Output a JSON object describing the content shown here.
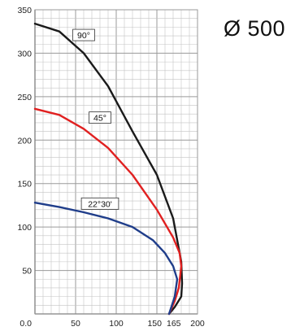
{
  "diameter_label": "Ø 500",
  "chart_data": {
    "type": "line",
    "title": "",
    "xlabel": "",
    "ylabel": "",
    "xlim": [
      0,
      200
    ],
    "ylim": [
      0,
      350
    ],
    "grid": true,
    "x_ticks": [
      "0.0",
      "50",
      "100",
      "150",
      "165",
      "200"
    ],
    "x_tick_values": [
      0,
      50,
      100,
      150,
      165,
      200
    ],
    "y_ticks": [
      50,
      100,
      150,
      200,
      250,
      300,
      350
    ],
    "series": [
      {
        "name": "90°",
        "color": "#1a1a1a",
        "x": [
          0,
          30,
          60,
          90,
          120,
          150,
          170,
          180,
          181,
          180,
          172,
          165
        ],
        "y": [
          334,
          325,
          300,
          262,
          210,
          160,
          110,
          60,
          35,
          20,
          8,
          0
        ]
      },
      {
        "name": "45°",
        "color": "#e02020",
        "x": [
          0,
          30,
          60,
          90,
          120,
          150,
          170,
          178,
          180,
          177,
          172,
          165
        ],
        "y": [
          236,
          229,
          213,
          191,
          160,
          120,
          88,
          70,
          55,
          30,
          15,
          0
        ]
      },
      {
        "name": "22°30'",
        "color": "#1f3d8a",
        "x": [
          0,
          30,
          60,
          90,
          120,
          145,
          160,
          170,
          175,
          172,
          165
        ],
        "y": [
          128,
          123,
          117,
          110,
          100,
          85,
          70,
          55,
          40,
          20,
          0
        ]
      }
    ]
  }
}
